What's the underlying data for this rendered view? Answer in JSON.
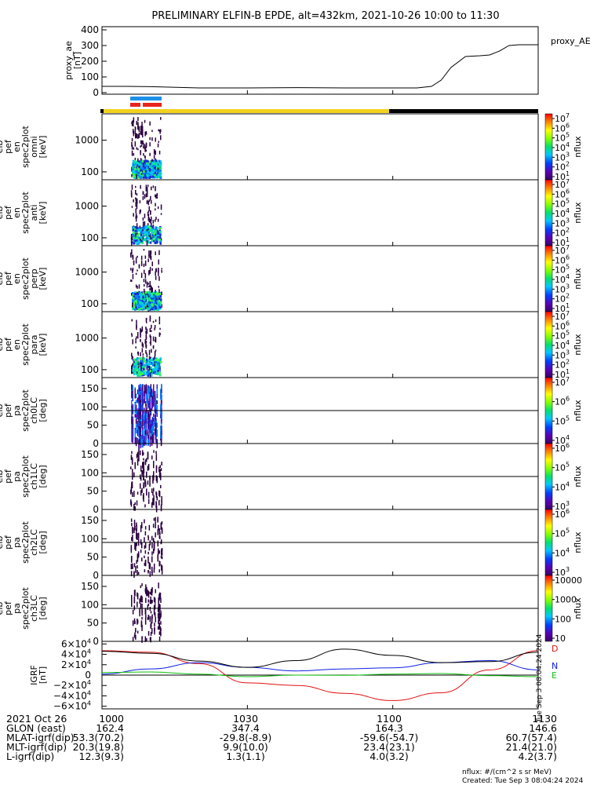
{
  "title": "PRELIMINARY ELFIN-B EPDE, alt=432km, 2021-10-26 10:00 to 11:30",
  "colors": {
    "sunlit_bar": "#f2d21e",
    "shadow_bar": "#000000",
    "science_blue": "#1e90e8",
    "science_red": "#e8241e",
    "igrf_d": "#e01010",
    "igrf_n": "#1020e0",
    "igrf_e": "#10c010",
    "igrf_total": "#000000"
  },
  "chart_data": [
    {
      "id": "proxy_ae",
      "type": "line",
      "ylabel": [
        "proxy_ae",
        "[nT]"
      ],
      "yticks": [
        "400",
        "300",
        "200",
        "100",
        "0"
      ],
      "ylim": [
        -10,
        420
      ],
      "legend": "proxy_AE",
      "x": [
        0,
        5,
        10,
        20,
        30,
        40,
        50,
        60,
        65,
        68,
        70,
        72,
        75,
        78,
        80,
        82,
        84,
        86,
        90
      ],
      "values": [
        40,
        40,
        38,
        30,
        30,
        32,
        30,
        30,
        30,
        40,
        80,
        160,
        230,
        235,
        240,
        265,
        300,
        305,
        305
      ]
    },
    {
      "id": "omni",
      "type": "heatmap",
      "ylabel": [
        "elb",
        "pef",
        "en",
        "spec2plot",
        "omni",
        "[keV]"
      ],
      "yticks": [
        "1000",
        "100"
      ],
      "scale": "log",
      "colorbar": {
        "label": "nflux",
        "ticks": [
          "10",
          "10",
          "10",
          "10",
          "10",
          "10",
          "10"
        ],
        "exps": [
          "7",
          "6",
          "5",
          "4",
          "3",
          "2",
          "1"
        ]
      }
    },
    {
      "id": "anti",
      "type": "heatmap",
      "ylabel": [
        "elb",
        "pef",
        "en",
        "spec2plot",
        "anti",
        "[keV]"
      ],
      "yticks": [
        "1000",
        "100"
      ],
      "scale": "log",
      "colorbar": {
        "label": "nflux",
        "ticks": [
          "10",
          "10",
          "10",
          "10",
          "10",
          "10",
          "10"
        ],
        "exps": [
          "7",
          "6",
          "5",
          "4",
          "3",
          "2",
          "1"
        ]
      }
    },
    {
      "id": "perp",
      "type": "heatmap",
      "ylabel": [
        "elb",
        "pef",
        "en",
        "spec2plot",
        "perp",
        "[keV]"
      ],
      "yticks": [
        "1000",
        "100"
      ],
      "scale": "log",
      "colorbar": {
        "label": "nflux",
        "ticks": [
          "10",
          "10",
          "10",
          "10",
          "10",
          "10",
          "10"
        ],
        "exps": [
          "7",
          "6",
          "5",
          "4",
          "3",
          "2",
          "1"
        ]
      }
    },
    {
      "id": "para",
      "type": "heatmap",
      "ylabel": [
        "elb",
        "pef",
        "en",
        "spec2plot",
        "para",
        "[keV]"
      ],
      "yticks": [
        "1000",
        "100"
      ],
      "scale": "log",
      "colorbar": {
        "label": "nflux",
        "ticks": [
          "10",
          "10",
          "10",
          "10",
          "10",
          "10",
          "10"
        ],
        "exps": [
          "7",
          "6",
          "5",
          "4",
          "3",
          "2",
          "1"
        ]
      }
    },
    {
      "id": "ch0LC",
      "type": "heatmap",
      "ylabel": [
        "elb",
        "pef",
        "pa",
        "spec2plot",
        "ch0LC",
        "[deg]"
      ],
      "yticks": [
        "150",
        "100",
        "50",
        "0"
      ],
      "ylim": [
        0,
        180
      ],
      "lc_line": 90,
      "colorbar": {
        "label": "nflux",
        "ticks": [
          "10",
          "10",
          "10",
          "10"
        ],
        "exps": [
          "7",
          "6",
          "5",
          "4"
        ]
      }
    },
    {
      "id": "ch1LC",
      "type": "heatmap",
      "ylabel": [
        "elb",
        "pef",
        "pa",
        "spec2plot",
        "ch1LC",
        "[deg]"
      ],
      "yticks": [
        "150",
        "100",
        "50",
        "0"
      ],
      "ylim": [
        0,
        180
      ],
      "lc_line": 90,
      "colorbar": {
        "label": "nflux",
        "ticks": [
          "10",
          "10",
          "10",
          "10"
        ],
        "exps": [
          "6",
          "5",
          "4",
          "3"
        ]
      }
    },
    {
      "id": "ch2LC",
      "type": "heatmap",
      "ylabel": [
        "elb",
        "pef",
        "pa",
        "spec2plot",
        "ch2LC",
        "[deg]"
      ],
      "yticks": [
        "150",
        "100",
        "50",
        "0"
      ],
      "ylim": [
        0,
        180
      ],
      "lc_line": 90,
      "colorbar": {
        "label": "nflux",
        "ticks": [
          "10",
          "10",
          "10",
          "10"
        ],
        "exps": [
          "6",
          "5",
          "4",
          "3"
        ]
      }
    },
    {
      "id": "ch3LC",
      "type": "heatmap",
      "ylabel": [
        "elb",
        "pef",
        "pa",
        "spec2plot",
        "ch3LC",
        "[deg]"
      ],
      "yticks": [
        "150",
        "100",
        "50",
        "0"
      ],
      "ylim": [
        0,
        180
      ],
      "lc_line": 90,
      "colorbar": {
        "label": "nflux",
        "ticks": [
          "10000",
          "1000",
          "100",
          "10"
        ],
        "exps": [
          "",
          "",
          "",
          ""
        ]
      }
    },
    {
      "id": "igrf",
      "type": "line",
      "ylabel": [
        "IGRF",
        "[nT]"
      ],
      "yticks": [
        {
          "v": 60000,
          "label": "6×10",
          "exp": "4"
        },
        {
          "v": 40000,
          "label": "4×10",
          "exp": "4"
        },
        {
          "v": 20000,
          "label": "2×10",
          "exp": "4"
        },
        {
          "v": 0,
          "label": "0",
          "exp": ""
        },
        {
          "v": -20000,
          "label": "−2×10",
          "exp": "4"
        },
        {
          "v": -40000,
          "label": "−4×10",
          "exp": "4"
        },
        {
          "v": -60000,
          "label": "−6×10",
          "exp": "4"
        }
      ],
      "ylim": [
        -65000,
        65000
      ],
      "series": [
        {
          "name": "D",
          "color": "#e01010",
          "x": [
            0,
            10,
            20,
            30,
            40,
            50,
            60,
            70,
            80,
            90
          ],
          "values": [
            47000,
            44000,
            22000,
            -15000,
            -20000,
            -35000,
            -49000,
            -34000,
            10000,
            47000
          ]
        },
        {
          "name": "N",
          "color": "#1020e0",
          "x": [
            0,
            10,
            20,
            30,
            40,
            50,
            60,
            70,
            80,
            90
          ],
          "values": [
            2000,
            12000,
            24000,
            15000,
            8000,
            12000,
            14000,
            24000,
            28000,
            10000
          ]
        },
        {
          "name": "E",
          "color": "#10c010",
          "x": [
            0,
            10,
            20,
            30,
            40,
            50,
            60,
            70,
            80,
            90
          ],
          "values": [
            5000,
            6000,
            2000,
            -3000,
            0,
            -500,
            2000,
            3000,
            -1000,
            -3000
          ]
        },
        {
          "name": "",
          "color": "#000000",
          "x": [
            0,
            10,
            20,
            30,
            40,
            50,
            60,
            70,
            80,
            90
          ],
          "values": [
            46000,
            42000,
            27000,
            15000,
            28000,
            50000,
            38000,
            24000,
            26000,
            44000
          ]
        }
      ],
      "side_text": "Tue Sep  3 08:04:24 2024"
    }
  ],
  "ephemeris": {
    "rows": [
      {
        "label": "2021 Oct 26",
        "cols": [
          "1000",
          "1030",
          "1100",
          "1130"
        ]
      },
      {
        "label": "GLON (east)",
        "cols": [
          "162.4",
          "347.4",
          "164.3",
          "146.6"
        ]
      },
      {
        "label": "MLAT-igrf(dip)",
        "cols": [
          "53.3(70.2)",
          "-29.8(-8.9)",
          "-59.6(-54.7)",
          "60.7(57.4)"
        ]
      },
      {
        "label": "MLT-igrf(dip)",
        "cols": [
          "20.3(19.8)",
          "9.9(10.0)",
          "23.4(23.1)",
          "21.4(21.0)"
        ]
      },
      {
        "label": "L-igrf(dip)",
        "cols": [
          "12.3(9.3)",
          "1.3(1.1)",
          "4.0(3.2)",
          "4.2(3.7)"
        ]
      }
    ]
  },
  "footer": {
    "units": "nflux: #/(cm^2 s sr MeV)",
    "created": "Created: Tue Sep  3 08:04:24 2024"
  }
}
